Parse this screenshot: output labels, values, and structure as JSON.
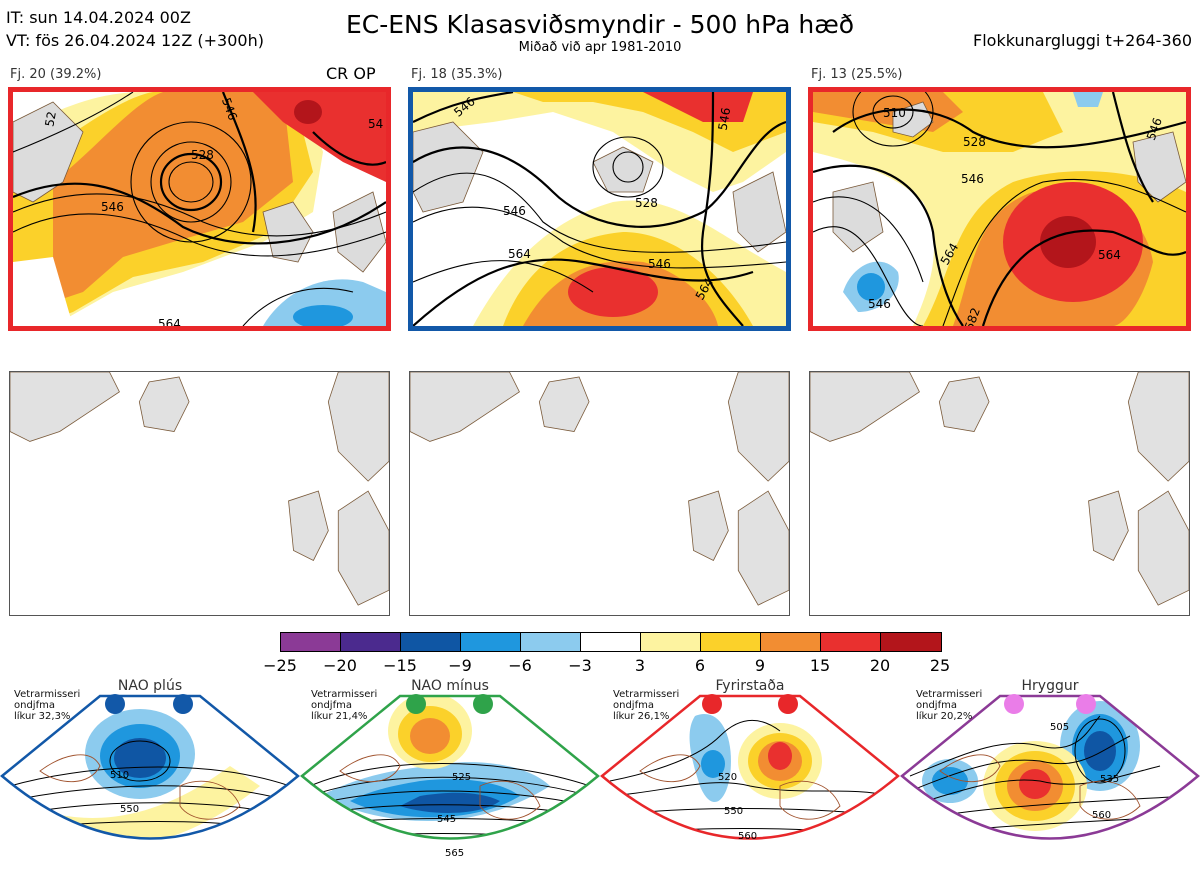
{
  "header": {
    "it_line": "IT: sun 14.04.2024 00Z",
    "vt_line": "VT: fös 26.04.2024 12Z  (+300h)",
    "title": "EC-ENS Klasasviðsmyndir - 500 hPa hæð",
    "subtitle": "Miðað við apr 1981-2010",
    "window": "Flokkunargluggi t+264-360"
  },
  "clusters": [
    {
      "label": "Fj. 20 (39.2%)",
      "tag": "CR OP",
      "border_color": "#e8272a",
      "contour_labels": [
        "528",
        "546",
        "546",
        "564",
        "52",
        "54"
      ]
    },
    {
      "label": "Fj. 18 (35.3%)",
      "tag": "",
      "border_color": "#1258a8",
      "contour_labels": [
        "528",
        "546",
        "546",
        "564",
        "564",
        "546",
        "546"
      ]
    },
    {
      "label": "Fj. 13 (25.5%)",
      "tag": "",
      "border_color": "#e8272a",
      "contour_labels": [
        "510",
        "528",
        "546",
        "546",
        "564",
        "564",
        "546",
        "582"
      ]
    }
  ],
  "colorbar": {
    "ticks": [
      "−25",
      "−20",
      "−15",
      "−9",
      "−6",
      "−3",
      "3",
      "6",
      "9",
      "15",
      "20",
      "25"
    ],
    "colors": [
      "#8b3a96",
      "#4b2a8e",
      "#0f56a4",
      "#1f97de",
      "#8ccbee",
      "#ffffff",
      "#fdf3a0",
      "#fbd12a",
      "#f28d32",
      "#e9302f",
      "#b3151b"
    ]
  },
  "regimes": [
    {
      "name": "NAO plús",
      "info": [
        "Vetrarmisseri",
        "ondjfma",
        "líkur 32,3%"
      ],
      "color": "#1258a8",
      "contours": [
        "510",
        "550"
      ]
    },
    {
      "name": "NAO mínus",
      "info": [
        "Vetrarmisseri",
        "ondjfma",
        "líkur 21,4%"
      ],
      "color": "#2fa34a",
      "contours": [
        "525",
        "545",
        "565"
      ]
    },
    {
      "name": "Fyrirstaða",
      "info": [
        "Vetrarmisseri",
        "ondjfma",
        "líkur 26,1%"
      ],
      "color": "#e8272a",
      "contours": [
        "520",
        "550",
        "560"
      ]
    },
    {
      "name": "Hryggur",
      "info": [
        "Vetrarmisseri",
        "ondjfma",
        "líkur 20,2%"
      ],
      "color": "#8b3a96",
      "dot_color": "#ea7de8",
      "contours": [
        "505",
        "535",
        "560"
      ]
    }
  ]
}
